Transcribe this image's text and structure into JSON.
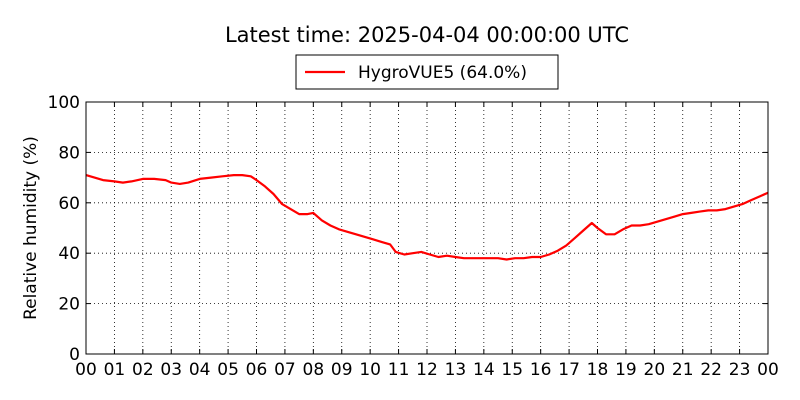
{
  "chart_data": {
    "type": "line",
    "title": "Latest time: 2025-04-04 00:00:00 UTC",
    "xlabel": "",
    "ylabel": "Relative humidity (%)",
    "ylim": [
      0,
      100
    ],
    "yticks": [
      0,
      20,
      40,
      60,
      80,
      100
    ],
    "xlim": [
      0,
      24
    ],
    "xticks": [
      "00",
      "01",
      "02",
      "03",
      "04",
      "05",
      "06",
      "07",
      "08",
      "09",
      "10",
      "11",
      "12",
      "13",
      "14",
      "15",
      "16",
      "17",
      "18",
      "19",
      "20",
      "21",
      "22",
      "23",
      "00"
    ],
    "grid": true,
    "legend_position": "top-center",
    "series": [
      {
        "name": "HygroVUE5 (64.0%)",
        "color": "#ff0000",
        "x": [
          0,
          0.3,
          0.6,
          1.0,
          1.3,
          1.6,
          2.0,
          2.4,
          2.8,
          3.0,
          3.3,
          3.6,
          4.0,
          4.4,
          4.8,
          5.2,
          5.5,
          5.8,
          6.0,
          6.3,
          6.6,
          6.9,
          7.2,
          7.5,
          7.8,
          8.0,
          8.3,
          8.6,
          8.9,
          9.2,
          9.5,
          9.8,
          10.1,
          10.4,
          10.7,
          10.9,
          11.2,
          11.5,
          11.8,
          12.1,
          12.4,
          12.7,
          13.0,
          13.3,
          13.6,
          13.9,
          14.2,
          14.5,
          14.8,
          15.1,
          15.4,
          15.7,
          16.0,
          16.3,
          16.6,
          16.9,
          17.2,
          17.5,
          17.8,
          18.0,
          18.3,
          18.6,
          18.9,
          19.2,
          19.5,
          19.8,
          20.1,
          20.4,
          20.7,
          21.0,
          21.3,
          21.6,
          21.9,
          22.2,
          22.5,
          22.8,
          23.1,
          23.4,
          23.7,
          24.0
        ],
        "values": [
          71,
          70,
          69,
          68.5,
          68,
          68.5,
          69.5,
          69.5,
          69,
          68,
          67.5,
          68,
          69.5,
          70,
          70.5,
          71,
          71,
          70.5,
          69,
          66.5,
          63.5,
          59.5,
          57.5,
          55.5,
          55.5,
          56,
          53,
          51,
          49.5,
          48.5,
          47.5,
          46.5,
          45.5,
          44.5,
          43.5,
          40.5,
          39.5,
          40,
          40.5,
          39.5,
          38.5,
          39,
          38.5,
          38,
          38,
          38,
          38,
          38,
          37.5,
          38,
          38,
          38.5,
          38.5,
          39.5,
          41,
          43,
          46,
          49,
          52,
          50,
          47.5,
          47.5,
          49.5,
          51,
          51,
          51.5,
          52.5,
          53.5,
          54.5,
          55.5,
          56,
          56.5,
          57,
          57,
          57.5,
          58.5,
          59.5,
          61,
          62.5,
          64
        ]
      }
    ]
  }
}
